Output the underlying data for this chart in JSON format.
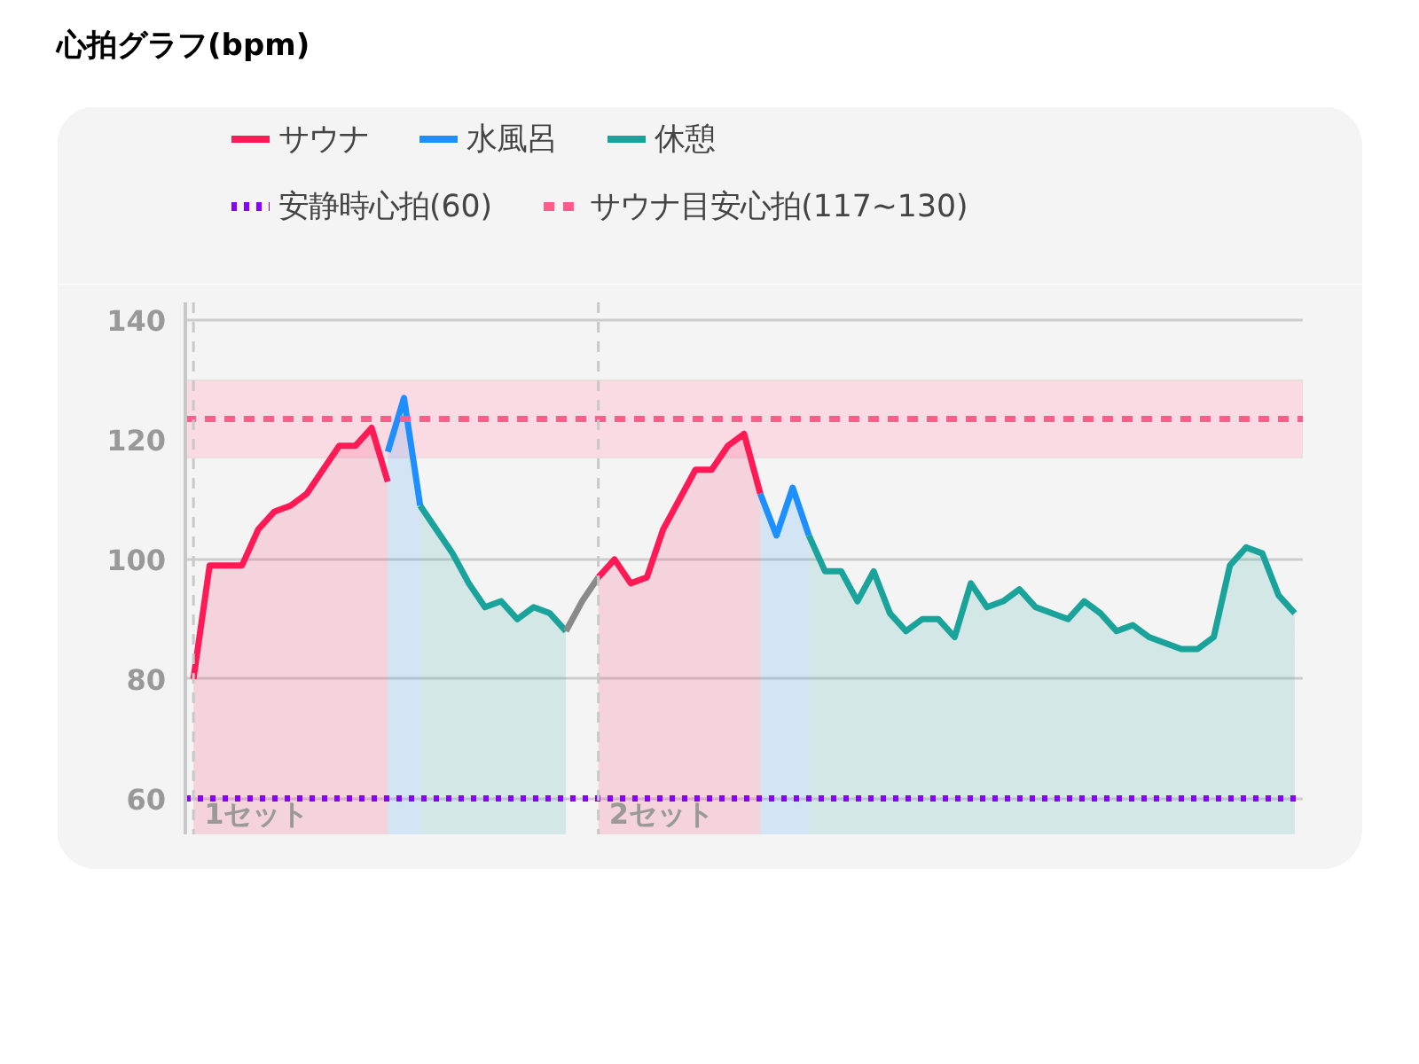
{
  "chart_data": {
    "type": "area",
    "title": "心拍グラフ(bpm)",
    "categories": [
      null,
      null,
      null,
      null,
      null,
      null,
      null,
      null,
      null,
      null,
      null,
      null,
      null,
      null,
      null,
      null,
      null,
      null,
      null,
      null,
      null,
      null,
      null,
      null,
      null,
      null,
      null,
      null,
      null,
      null,
      null,
      null,
      null,
      null,
      null,
      null,
      null,
      null,
      null,
      null,
      null,
      null,
      null,
      null,
      null,
      null,
      null,
      null,
      null,
      null,
      null,
      null,
      null,
      null,
      null,
      null,
      null,
      null,
      null,
      null,
      null,
      null,
      null,
      null,
      null,
      null,
      null,
      null,
      null
    ],
    "series": [
      {
        "name": "サウナ",
        "color": "#ff1a55",
        "values": [
          80,
          99,
          99,
          99,
          105,
          108,
          109,
          111,
          115,
          119,
          119,
          122,
          113,
          null,
          null,
          null,
          null,
          null,
          null,
          null,
          null,
          null,
          null,
          null,
          null,
          97,
          100,
          96,
          97,
          105,
          110,
          115,
          115,
          119,
          121,
          111,
          null,
          null,
          null,
          null,
          null,
          null,
          null,
          null,
          null,
          null,
          null,
          null,
          null,
          null,
          null,
          null,
          null,
          null,
          null,
          null,
          null,
          null,
          null,
          null,
          null,
          null,
          null,
          null,
          null,
          null,
          null,
          null,
          null
        ]
      },
      {
        "name": "水風呂",
        "color": "#1e8fff",
        "values": [
          null,
          null,
          null,
          null,
          null,
          null,
          null,
          null,
          null,
          null,
          null,
          null,
          118,
          127,
          109,
          null,
          null,
          null,
          null,
          null,
          null,
          null,
          null,
          null,
          null,
          null,
          null,
          null,
          null,
          null,
          null,
          null,
          null,
          null,
          null,
          111,
          104,
          112,
          104,
          null,
          null,
          null,
          null,
          null,
          null,
          null,
          null,
          null,
          null,
          null,
          null,
          null,
          null,
          null,
          null,
          null,
          null,
          null,
          null,
          null,
          null,
          null,
          null,
          null,
          null,
          null,
          null,
          null,
          null
        ]
      },
      {
        "name": "休憩",
        "color": "#1aa39b",
        "values": [
          null,
          null,
          null,
          null,
          null,
          null,
          null,
          null,
          null,
          null,
          null,
          null,
          null,
          null,
          109,
          105,
          101,
          96,
          92,
          93,
          90,
          92,
          91,
          88,
          null,
          null,
          null,
          null,
          null,
          null,
          null,
          null,
          null,
          null,
          null,
          null,
          null,
          null,
          104,
          98,
          98,
          93,
          98,
          91,
          88,
          90,
          90,
          87,
          96,
          92,
          93,
          95,
          92,
          91,
          90,
          93,
          91,
          88,
          89,
          87,
          86,
          85,
          85,
          87,
          99,
          102,
          101,
          94,
          91
        ]
      },
      {
        "color": "#8a8a8a",
        "type": "line",
        "values": [
          null,
          null,
          null,
          null,
          null,
          null,
          null,
          null,
          null,
          null,
          null,
          null,
          null,
          null,
          null,
          null,
          null,
          null,
          null,
          null,
          null,
          null,
          null,
          88,
          93,
          97,
          null,
          null,
          null,
          null,
          null,
          null,
          null,
          null,
          null,
          null,
          null,
          null,
          null,
          null,
          null,
          null,
          null,
          null,
          null,
          null,
          null,
          null,
          null,
          null,
          null,
          null,
          null,
          null,
          null,
          null,
          null,
          null,
          null,
          null,
          null,
          null,
          null,
          null,
          null,
          null,
          null,
          null,
          null
        ]
      }
    ],
    "ylim": [
      54,
      143
    ],
    "yticks": [
      60,
      80,
      100,
      120,
      140
    ],
    "tick_labels": "y",
    "grid": "y",
    "legend": "top",
    "ref_lines": [
      {
        "axis": "y",
        "value": 60,
        "label": "安静時心拍(60)",
        "color": "#8a00ff",
        "line_style": "dotted"
      },
      {
        "axis": "y",
        "value": 123.5,
        "label": "サウナ目安心拍(117~130)",
        "color": "#ff5c8a",
        "line_style": "dashed"
      }
    ],
    "annotations": [
      "1セット",
      "2セット"
    ],
    "bands": [
      {
        "axis": "y",
        "from": 117,
        "to": 130,
        "color": "#fadbe4"
      }
    ]
  }
}
